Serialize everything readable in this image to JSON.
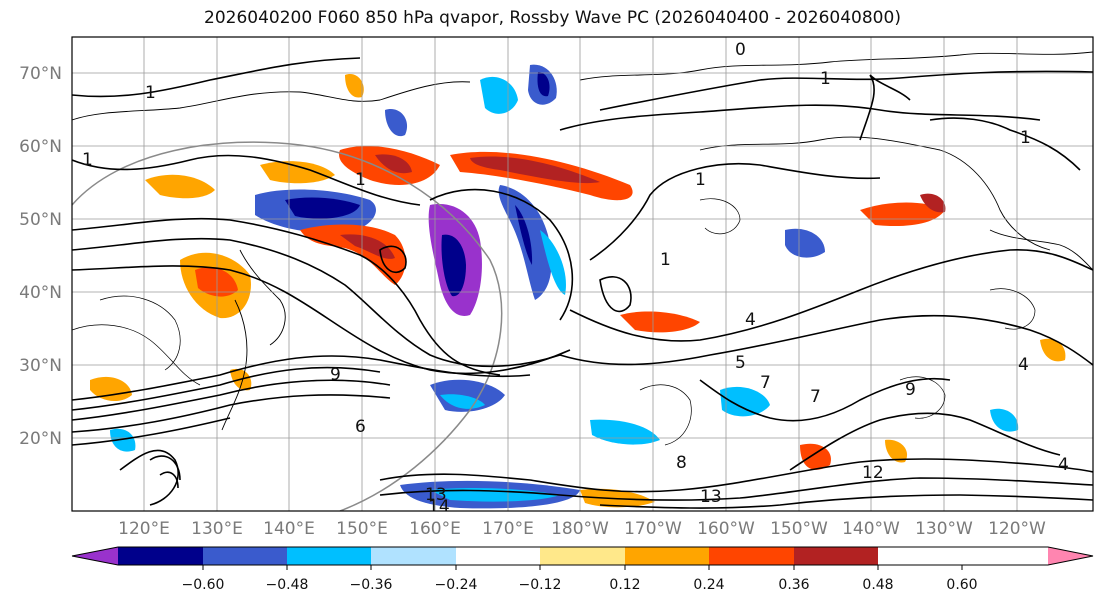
{
  "title": "2026040200 F060 850 hPa qvapor, Rossby Wave PC (2026040400 - 2026040800)",
  "latitude_labels": [
    "70°N",
    "60°N",
    "50°N",
    "40°N",
    "30°N",
    "20°N"
  ],
  "longitude_labels": [
    "120°E",
    "130°E",
    "140°E",
    "150°E",
    "160°E",
    "170°E",
    "180°W",
    "170°W",
    "160°W",
    "150°W",
    "140°W",
    "130°W",
    "120°W"
  ],
  "colorbar": {
    "ticks": [
      "−0.60",
      "−0.48",
      "−0.36",
      "−0.24",
      "−0.12",
      "0.12",
      "0.24",
      "0.36",
      "0.48",
      "0.60"
    ],
    "colors": [
      "#9932cc",
      "#00008b",
      "#3a5bcd",
      "#00bfff",
      "#b0e2ff",
      "#ffffff",
      "#ffe88a",
      "#ffa500",
      "#ff4500",
      "#b22222",
      "#ff85b0"
    ]
  },
  "contour_labels": [
    "0",
    "1",
    "1",
    "1",
    "1",
    "1",
    "1",
    "1",
    "4",
    "4",
    "5",
    "7",
    "7",
    "9",
    "9",
    "12",
    "13",
    "13",
    "14",
    "4",
    "6",
    "8"
  ],
  "colors": {
    "axes": "#000000",
    "grid": "#9a9a9a",
    "tick_label": "#7a7a7a"
  }
}
